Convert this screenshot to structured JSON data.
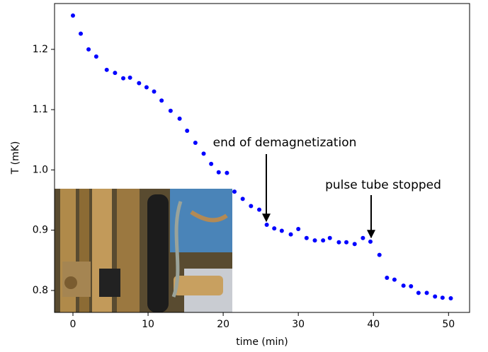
{
  "chart_data": {
    "type": "scatter",
    "x_label": "time (min)",
    "y_label": "T (mK)",
    "xlim": [
      -2.45,
      52.8
    ],
    "ylim": [
      0.7636,
      1.276
    ],
    "xticks": [
      0,
      10,
      20,
      30,
      40,
      50
    ],
    "yticks": [
      0.8,
      0.9,
      {
        "value": 1,
        "label": "1.0"
      },
      1.1,
      1.2
    ],
    "grid": false,
    "series": [
      {
        "color": "#0000ff",
        "x": [
          0,
          1.04,
          2.08,
          3.1,
          4.5,
          5.6,
          6.7,
          7.6,
          8.8,
          9.8,
          10.8,
          11.8,
          13.0,
          14.2,
          15.2,
          16.3,
          17.4,
          18.4,
          19.4,
          20.5,
          21.5,
          22.6,
          23.7,
          24.8,
          25.8,
          26.8,
          27.8,
          29.0,
          30.0,
          31.1,
          32.2,
          33.3,
          34.2,
          35.4,
          36.4,
          37.5,
          38.6,
          39.6,
          40.8,
          41.8,
          42.8,
          44.0,
          45.0,
          46.0,
          47.1,
          48.2,
          49.2,
          50.3
        ],
        "values": [
          1.256,
          1.226,
          1.2,
          1.188,
          1.166,
          1.161,
          1.152,
          1.153,
          1.144,
          1.137,
          1.13,
          1.115,
          1.098,
          1.085,
          1.065,
          1.045,
          1.027,
          1.01,
          0.996,
          0.995,
          0.964,
          0.952,
          0.94,
          0.934,
          0.909,
          0.903,
          0.899,
          0.893,
          0.902,
          0.887,
          0.883,
          0.883,
          0.887,
          0.88,
          0.88,
          0.877,
          0.887,
          0.881,
          0.859,
          0.821,
          0.818,
          0.808,
          0.807,
          0.796,
          0.796,
          0.79,
          0.788,
          0.787
        ]
      }
    ],
    "annotations": [
      {
        "text": "end of demagnetization"
      },
      {
        "text": "pulse tube stopped"
      }
    ]
  }
}
